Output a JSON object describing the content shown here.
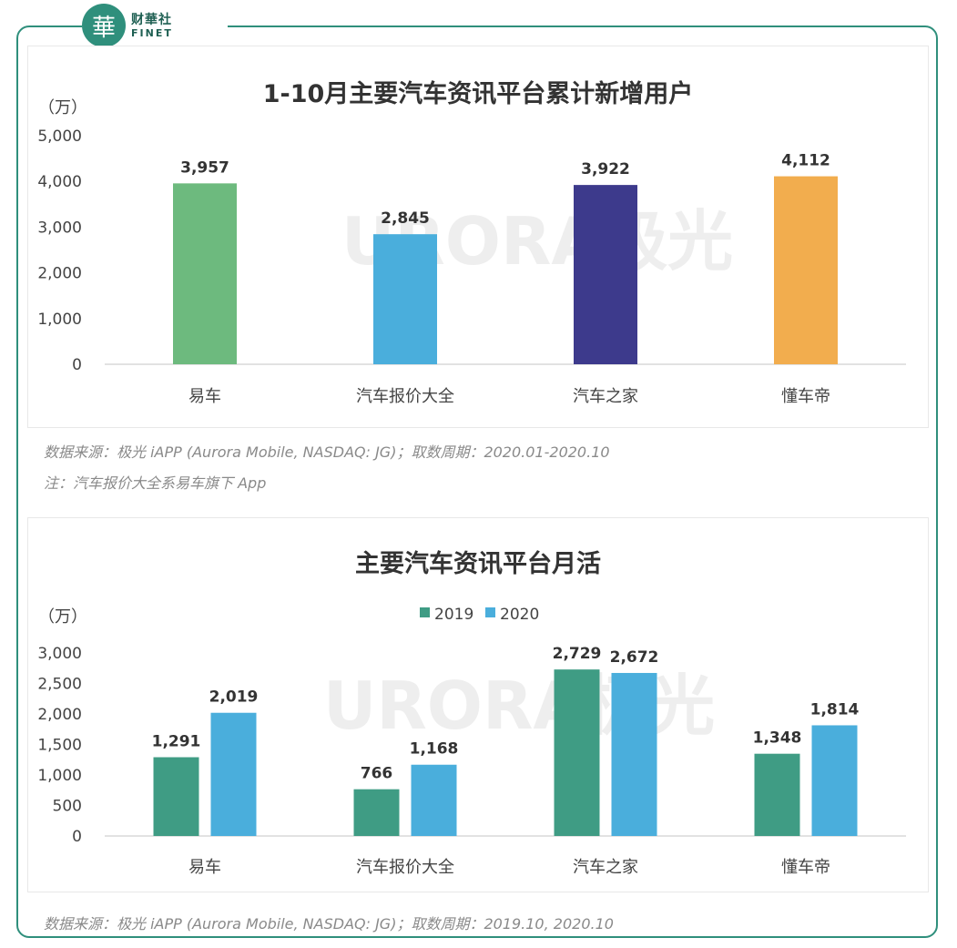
{
  "brand": {
    "seal_char": "華",
    "name_cn": "财華社",
    "name_en": "FINET",
    "color": "#2f8f7c"
  },
  "watermark": "URORA极光",
  "chart_data": [
    {
      "type": "bar",
      "title": "1-10月主要汽车资讯平台累计新增用户",
      "ylabel": "（万）",
      "ylim": [
        0,
        5000
      ],
      "yticks": [
        0,
        1000,
        2000,
        3000,
        4000,
        5000
      ],
      "ytick_labels": [
        "0",
        "1,000",
        "2,000",
        "3,000",
        "4,000",
        "5,000"
      ],
      "categories": [
        "易车",
        "汽车报价大全",
        "汽车之家",
        "懂车帝"
      ],
      "values": [
        3957,
        2845,
        3922,
        4112
      ],
      "value_labels": [
        "3,957",
        "2,845",
        "3,922",
        "4,112"
      ],
      "colors": [
        "#6dba7e",
        "#4aaedc",
        "#3d3a8c",
        "#f2ad4e"
      ],
      "grid": false
    },
    {
      "type": "bar",
      "title": "主要汽车资讯平台月活",
      "ylabel": "（万）",
      "ylim": [
        0,
        3000
      ],
      "yticks": [
        0,
        500,
        1000,
        1500,
        2000,
        2500,
        3000
      ],
      "ytick_labels": [
        "0",
        "500",
        "1,000",
        "1,500",
        "2,000",
        "2,500",
        "3,000"
      ],
      "categories": [
        "易车",
        "汽车报价大全",
        "汽车之家",
        "懂车帝"
      ],
      "legend_position": "top-center",
      "series": [
        {
          "name": "2019",
          "color": "#3f9c84",
          "values": [
            1291,
            766,
            2729,
            1348
          ],
          "value_labels": [
            "1,291",
            "766",
            "2,729",
            "1,348"
          ]
        },
        {
          "name": "2020",
          "color": "#4aaedc",
          "values": [
            2019,
            1168,
            2672,
            1814
          ],
          "value_labels": [
            "2,019",
            "1,168",
            "2,672",
            "1,814"
          ]
        }
      ],
      "grid": false
    }
  ],
  "notes": {
    "chart1_source": "数据来源：极光 iAPP (Aurora Mobile, NASDAQ: JG)；取数周期：2020.01-2020.10",
    "chart1_note": "注：汽车报价大全系易车旗下 App",
    "chart2_source": "数据来源：极光 iAPP (Aurora Mobile, NASDAQ: JG)；取数周期：2019.10, 2020.10"
  }
}
